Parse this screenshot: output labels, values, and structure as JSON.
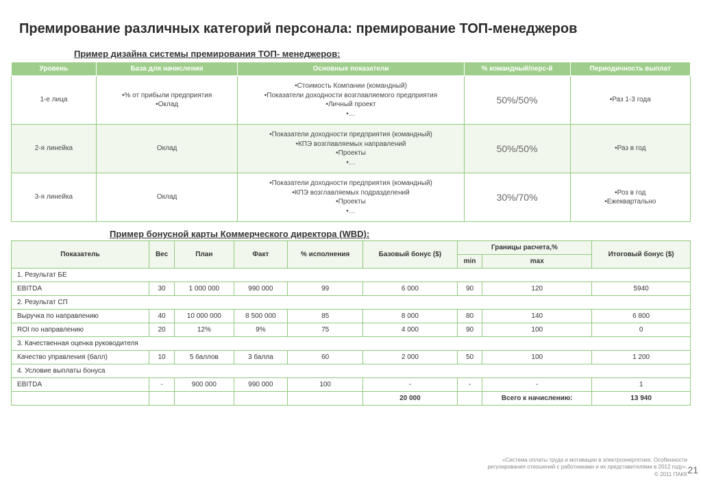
{
  "title": "Премирование различных категорий персонала: премирование ТОП-менеджеров",
  "sub1": "Пример дизайна системы премирования ТОП- менеджеров:",
  "sub2": "Пример бонусной карты Коммерческого директора (WBD):",
  "table1": {
    "headers": [
      "Уровень",
      "База для начисления",
      "Основные показатели",
      "% командный/перс-й",
      "Периодичность выплат"
    ],
    "rows": [
      {
        "lvl": "1-е лица",
        "base": "•% от прибыли предприятия\n•Оклад",
        "kpi": "•Стоимость Компании (командный)\n•Показатели доходности  возглавляемого предприятия\n•Личный проект\n•…",
        "ratio": "50%/50%",
        "period": "•Раз 1-3 года"
      },
      {
        "lvl": "2-я линейка",
        "base": "Оклад",
        "kpi": "•Показатели доходности  предприятия (командный)\n•КПЭ возглавляемых направлений\n•Проекты\n•…",
        "ratio": "50%/50%",
        "period": "•Раз в год"
      },
      {
        "lvl": "3-я линейка",
        "base": "Оклад",
        "kpi": "•Показатели доходности  предприятия (командный)\n•КПЭ возглавляемых подразделений\n•Проекты\n•…",
        "ratio": "30%/70%",
        "period": "•Роз в год\n•Ежеквартально"
      }
    ]
  },
  "table2": {
    "headers": {
      "c1": "Показатель",
      "c2": "Вес",
      "c3": "План",
      "c4": "Факт",
      "c5": "% исполнения",
      "c6": "Базовый бонус ($)",
      "cgrp": "Границы расчета,%",
      "c7": "min",
      "c8": "max",
      "c9": "Итоговый бонус ($)"
    },
    "sections": [
      {
        "label": "1. Результат БЕ",
        "rows": [
          {
            "name": "EBITDA",
            "w": "30",
            "plan": "1 000 000",
            "fact": "990 000",
            "pct": "99",
            "base": "6 000",
            "min": "90",
            "max": "120",
            "fin": "5940"
          }
        ]
      },
      {
        "label": "2. Результат СП",
        "rows": [
          {
            "name": "Выручка по направлению",
            "w": "40",
            "plan": "10 000 000",
            "fact": "8 500 000",
            "pct": "85",
            "base": "8 000",
            "min": "80",
            "max": "140",
            "fin": "6 800"
          },
          {
            "name": "ROI по направлению",
            "w": "20",
            "plan": "12%",
            "fact": "9%",
            "pct": "75",
            "base": "4 000",
            "min": "90",
            "max": "100",
            "fin": "0"
          }
        ]
      },
      {
        "label": "3. Качественная оценка руководителя",
        "rows": [
          {
            "name": "Качество управления (балл)",
            "w": "10",
            "plan": "5 баллов",
            "fact": "3 балла",
            "pct": "60",
            "base": "2 000",
            "min": "50",
            "max": "100",
            "fin": "1 200"
          }
        ]
      },
      {
        "label": "4. Условие выплаты бонуса",
        "rows": [
          {
            "name": "EBITDA",
            "w": "-",
            "plan": "900 000",
            "fact": "990 000",
            "pct": "100",
            "base": "-",
            "min": "-",
            "max": "-",
            "fin": "1"
          }
        ]
      }
    ],
    "total": {
      "base": "20 000",
      "label": "Всего к начислению:",
      "fin": "13 940"
    }
  },
  "footer": {
    "line1": "«Система оплаты труда и мотивации в электроэнергетике. Особенности",
    "line2": "регулирования отношений с работниками и их представителями в 2012 году».",
    "copy": "© 2011 ПАКК"
  },
  "pagenum": "21",
  "colors": {
    "header_bg": "#9fce8c",
    "border": "#8fc97a",
    "alt_row": "#f1f7ed"
  }
}
